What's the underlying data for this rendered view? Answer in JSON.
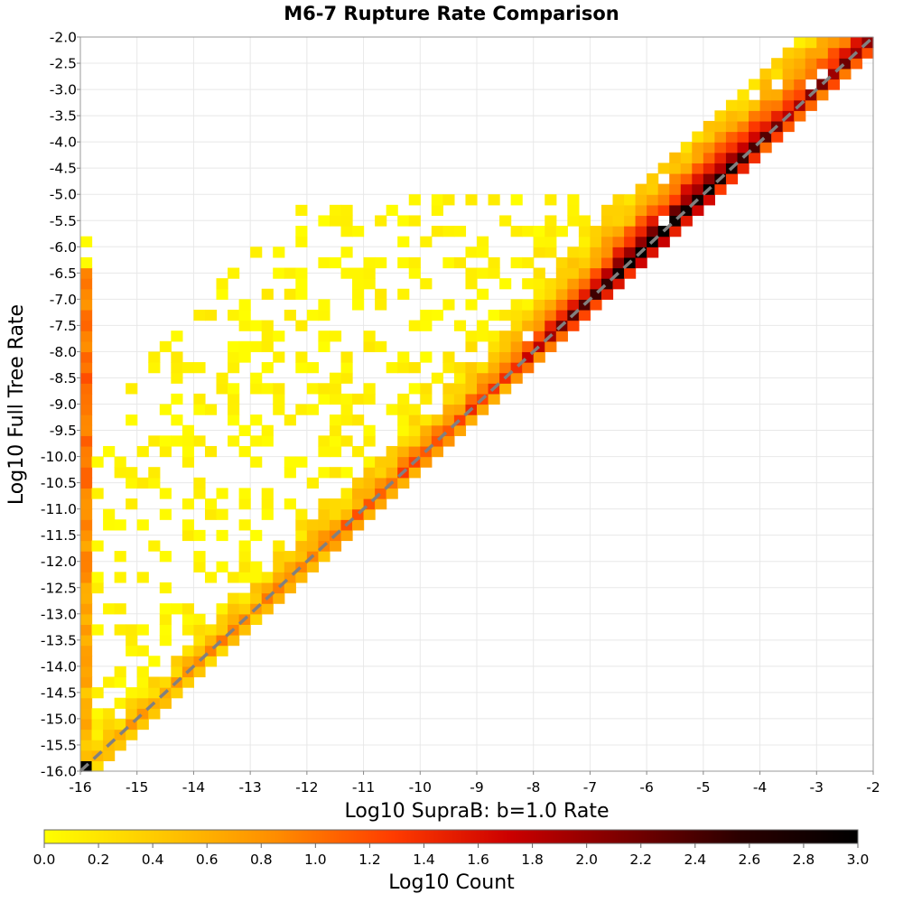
{
  "chart_data": {
    "type": "heatmap",
    "title": "M6-7 Rupture Rate Comparison",
    "xlabel": "Log10 SupraB: b=1.0 Rate",
    "ylabel": "Log10 Full Tree Rate",
    "xlim": [
      -16,
      -2
    ],
    "ylim": [
      -16,
      -2
    ],
    "bin_size": 0.2,
    "x_ticks": [
      "-16",
      "-15",
      "-14",
      "-13",
      "-12",
      "-11",
      "-10",
      "-9",
      "-8",
      "-7",
      "-6",
      "-5",
      "-4",
      "-3",
      "-2"
    ],
    "y_ticks": [
      "-2.0",
      "-2.5",
      "-3.0",
      "-3.5",
      "-4.0",
      "-4.5",
      "-5.0",
      "-5.5",
      "-6.0",
      "-6.5",
      "-7.0",
      "-7.5",
      "-8.0",
      "-8.5",
      "-9.0",
      "-9.5",
      "-10.0",
      "-10.5",
      "-11.0",
      "-11.5",
      "-12.0",
      "-12.5",
      "-13.0",
      "-13.5",
      "-14.0",
      "-14.5",
      "-15.0",
      "-15.5",
      "-16.0"
    ],
    "reference_line": "y = x (dashed gray)",
    "colorbar": {
      "label": "Log10 Count",
      "range": [
        0,
        3
      ],
      "ticks": [
        "0.0",
        "0.2",
        "0.4",
        "0.6",
        "0.8",
        "1.0",
        "1.2",
        "1.4",
        "1.6",
        "1.8",
        "2.0",
        "2.2",
        "2.4",
        "2.6",
        "2.8",
        "3.0"
      ],
      "colors": [
        "#ffff00",
        "#ffc800",
        "#ff8c00",
        "#ff3c00",
        "#cc0000",
        "#7a0000",
        "#2a0000",
        "#000000"
      ]
    },
    "density_model": {
      "description": "approximate log10 count per 0.2x0.2 bin, concentrated along the diagonal",
      "ridge_peak_x": -5.6,
      "ridge_peak_value": 3.0,
      "ridge_width": 0.35,
      "left_column_x": -16,
      "left_column_y_range": [
        -15.8,
        -6.4
      ],
      "corner_bin": [
        -16,
        -16
      ],
      "corner_value": 3.0
    },
    "color_reference": {
      "dashed_line": "#808080",
      "grid": "#e8e8e8"
    }
  }
}
